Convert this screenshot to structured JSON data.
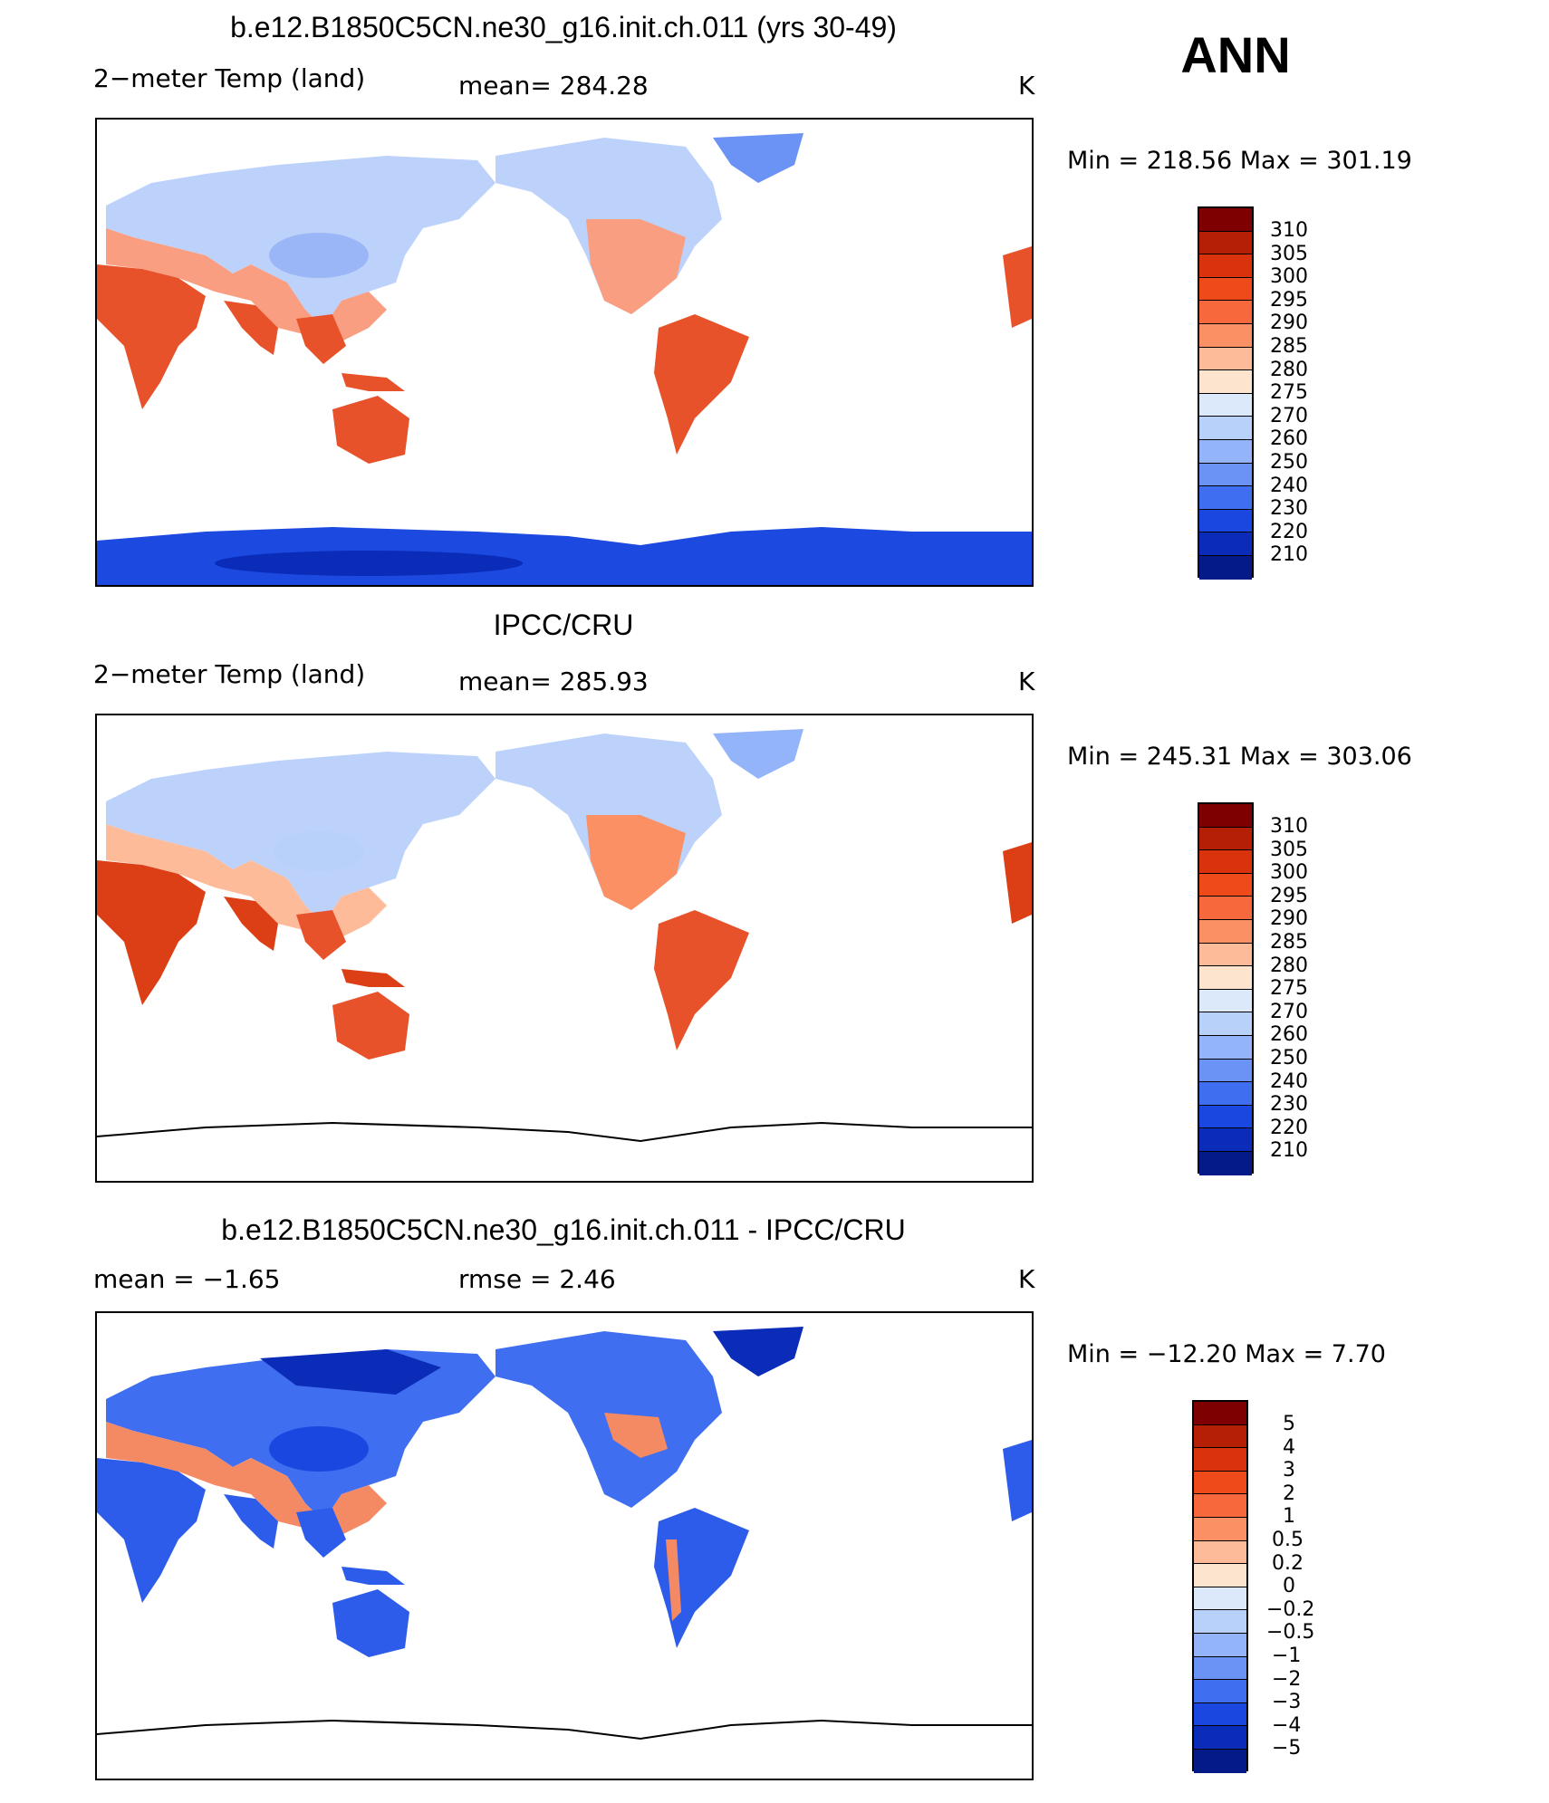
{
  "season": "ANN",
  "panels": [
    {
      "title": "b.e12.B1850C5CN.ne30_g16.init.ch.011 (yrs 30-49)",
      "left_text": "2−meter Temp (land)",
      "middle_text": "mean=  284.28",
      "right_text": "K",
      "minmax": "Min  =  218.56  Max  =  301.19",
      "colorbar_labels": [
        "310",
        "305",
        "300",
        "295",
        "290",
        "285",
        "280",
        "275",
        "270",
        "260",
        "250",
        "240",
        "230",
        "220",
        "210"
      ]
    },
    {
      "title": "IPCC/CRU",
      "left_text": "2−meter Temp (land)",
      "middle_text": "mean=  285.93",
      "right_text": "K",
      "minmax": "Min  =  245.31  Max  =  303.06",
      "colorbar_labels": [
        "310",
        "305",
        "300",
        "295",
        "290",
        "285",
        "280",
        "275",
        "270",
        "260",
        "250",
        "240",
        "230",
        "220",
        "210"
      ]
    },
    {
      "title": "b.e12.B1850C5CN.ne30_g16.init.ch.011 - IPCC/CRU",
      "left_text": "mean  =    −1.65",
      "middle_text": "rmse  =     2.46",
      "right_text": "K",
      "minmax": "Min  =  −12.20  Max  =      7.70",
      "colorbar_labels": [
        "5",
        "4",
        "3",
        "2",
        "1",
        "0.5",
        "0.2",
        "0",
        "−0.2",
        "−0.5",
        "−1",
        "−2",
        "−3",
        "−4",
        "−5"
      ]
    }
  ],
  "colors": {
    "temp_scale": [
      "#7f0000",
      "#b51f06",
      "#d9320d",
      "#ee4a1a",
      "#f7693c",
      "#fb9065",
      "#fdbb9a",
      "#fde4cf",
      "#dbe9fb",
      "#b8d1fa",
      "#93b4f8",
      "#6a93f5",
      "#3f6ff0",
      "#1a47e0",
      "#0a2cb8",
      "#041a86"
    ],
    "diff_scale": [
      "#7f0000",
      "#b51f06",
      "#d9320d",
      "#ee4a1a",
      "#f7693c",
      "#fb9065",
      "#fdbb9a",
      "#fde4cf",
      "#dbe9fb",
      "#b8d1fa",
      "#93b4f8",
      "#6a93f5",
      "#3f6ff0",
      "#1a47e0",
      "#0a2cb8",
      "#041a86"
    ],
    "land_warm": "#e8522a",
    "land_hot": "#dc3f16",
    "land_mild": "#f99e80",
    "land_cool": "#bcd2fb",
    "land_cold": "#9ab6f7",
    "antarctica_cold": "#1c49df",
    "antarctica_deep": "#0a2cb8",
    "diff_land": "#2e5cea",
    "diff_warm": "#f48a64"
  }
}
